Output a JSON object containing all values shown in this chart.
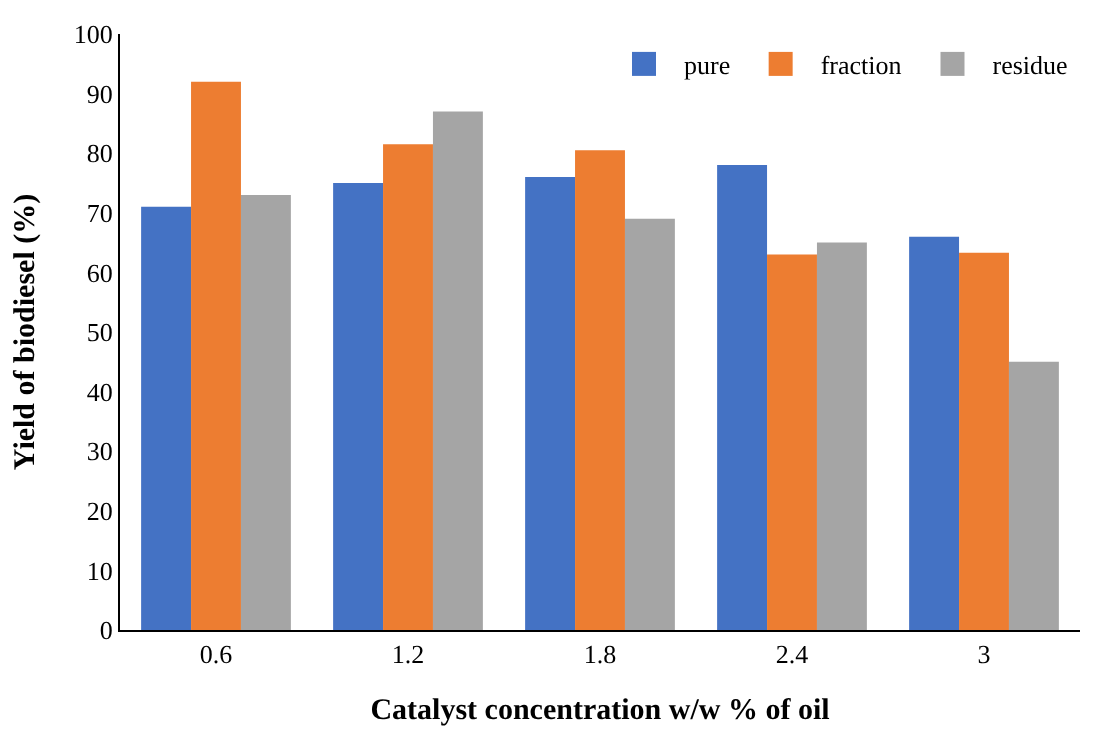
{
  "chart_data": {
    "type": "bar",
    "xlabel": "Catalyst concentration w/w % of oil",
    "ylabel": "Yield of biodiesel (%)",
    "categories": [
      "0.6",
      "1.2",
      "1.8",
      "2.4",
      "3"
    ],
    "series": [
      {
        "name": "pure",
        "color": "#4472c4",
        "values": [
          71,
          75,
          76,
          78,
          66
        ]
      },
      {
        "name": "fraction",
        "color": "#ed7d31",
        "values": [
          92,
          81.5,
          80.5,
          63,
          63.3
        ]
      },
      {
        "name": "residue",
        "color": "#a5a5a5",
        "values": [
          73,
          87,
          69,
          65,
          45
        ]
      }
    ],
    "ylim": [
      0,
      100
    ],
    "yticks": [
      0,
      10,
      20,
      30,
      40,
      50,
      60,
      70,
      80,
      90,
      100
    ],
    "legend": "top right"
  }
}
